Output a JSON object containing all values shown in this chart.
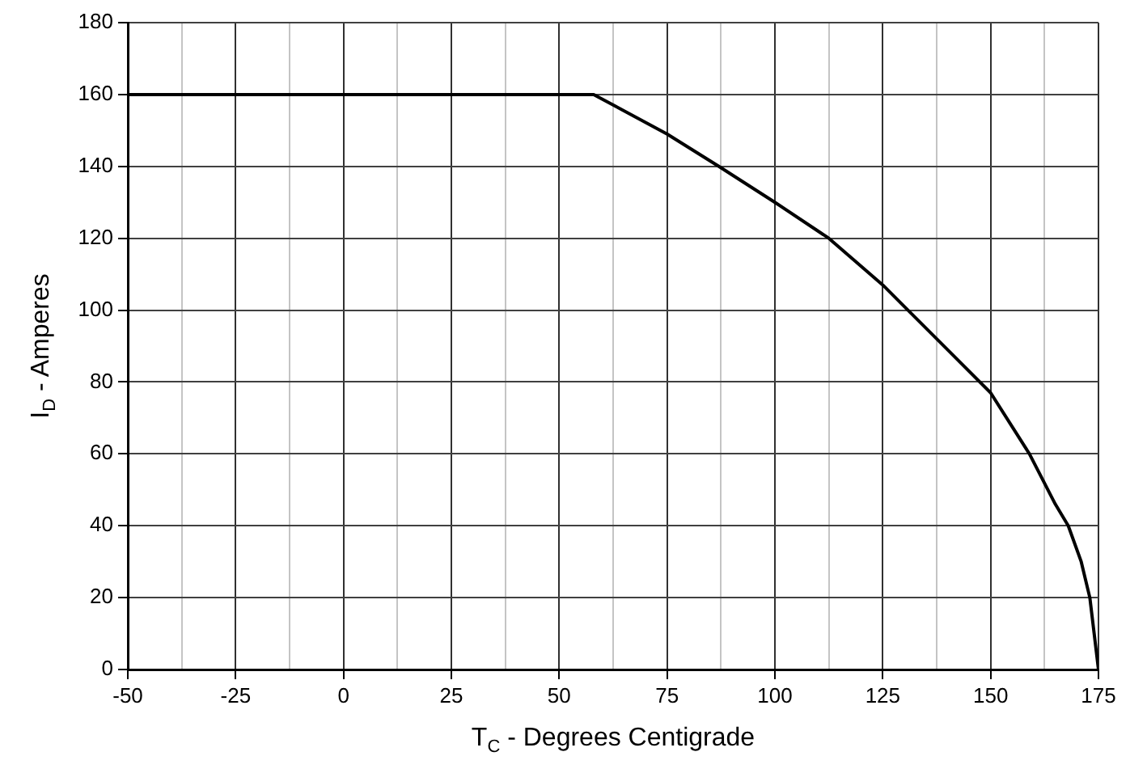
{
  "chart_data": {
    "type": "line",
    "xlabel": "T$_{C}$ - Degrees Centigrade",
    "ylabel": "I$_{D}$ - Amperes",
    "x": [
      -50,
      58,
      75,
      87,
      100,
      112.5,
      125,
      130,
      140,
      150,
      159,
      165,
      168,
      171,
      173,
      174,
      175
    ],
    "series": [
      {
        "color": "#000000",
        "values": [
          160,
          160,
          149,
          140,
          130,
          120,
          107,
          101,
          89,
          77,
          60,
          46,
          40,
          30,
          20,
          10,
          0
        ]
      }
    ],
    "xlim": [
      -50,
      175
    ],
    "xticks": [
      -50,
      {
        "value": -37.5,
        "label": null
      },
      -25,
      {
        "value": -12.5,
        "label": null
      },
      0,
      {
        "value": 12.5,
        "label": null
      },
      25,
      {
        "value": 37.5,
        "label": null
      },
      50,
      {
        "value": 62.5,
        "label": null
      },
      75,
      {
        "value": 87.5,
        "label": null
      },
      100,
      {
        "value": 112.5,
        "label": null
      },
      125,
      {
        "value": 137.5,
        "label": null
      },
      150,
      {
        "value": 162.5,
        "label": null
      },
      175
    ],
    "ylim": [
      0,
      180
    ],
    "yticks": [
      0,
      20,
      40,
      60,
      80,
      100,
      120,
      140,
      160,
      180
    ],
    "grid": true,
    "legend": false,
    "marker": "none",
    "line_style": "solid"
  }
}
